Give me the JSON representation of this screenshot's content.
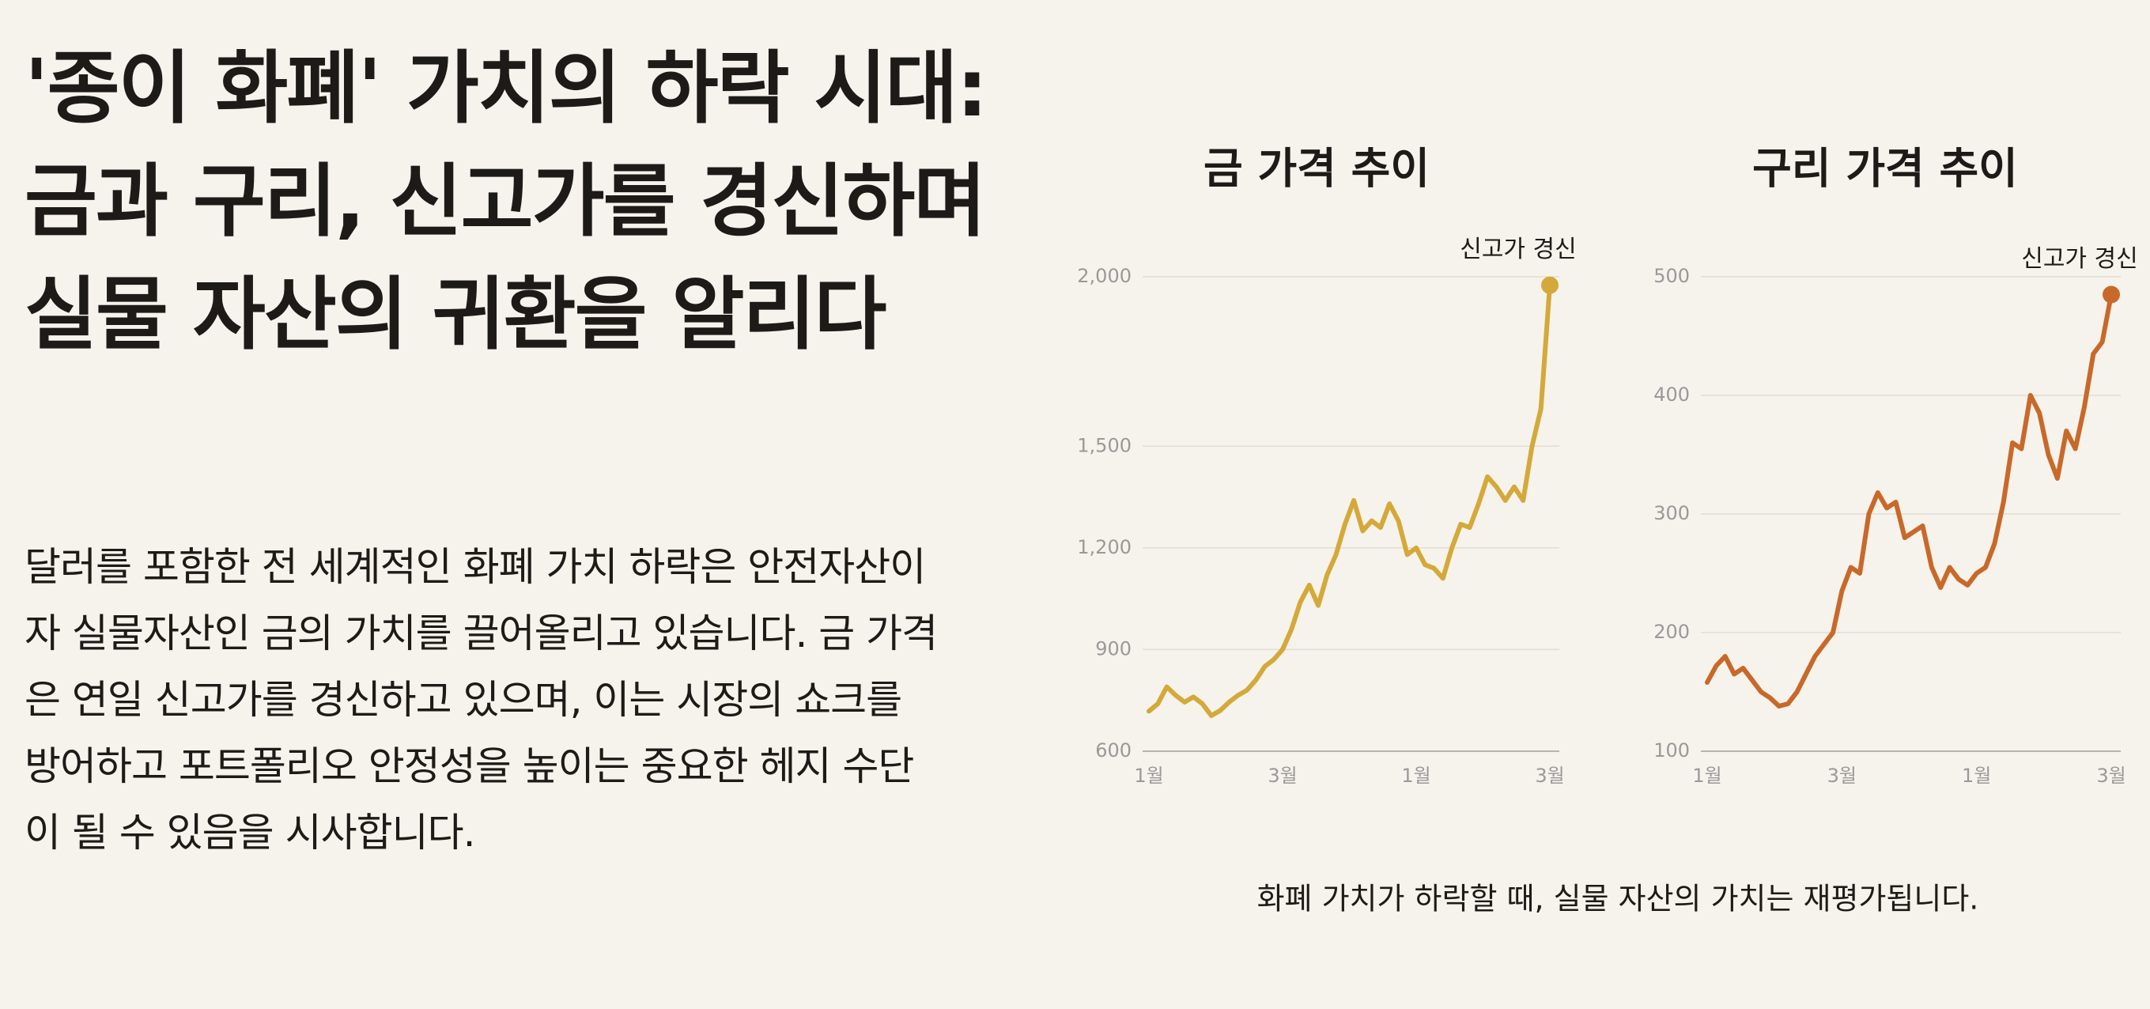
{
  "headline": "'종이 화폐' 가치의 하락 시대: 금과 구리, 신고가를 경신하며 실물 자산의 귀환을 알리다",
  "body": "달러를 포함한 전 세계적인 화폐 가치 하락은 안전자산이자 실물자산인 금의 가치를 끌어올리고 있습니다. 금 가격은 연일 신고가를 경신하고 있으며, 이는 시장의 쇼크를 방어하고 포트폴리오 안정성을 높이는 중요한 헤지 수단이 될 수 있음을 시사합니다.",
  "caption": "화폐 가치가 하락할 때, 실물 자산의 가치는 재평가됩니다.",
  "chart_data": [
    {
      "type": "line",
      "title": "금 가격 추이",
      "annotation": "신고가 경신",
      "color": "#d4a93a",
      "grid": true,
      "categories": [
        "1월",
        null,
        null,
        null,
        null,
        null,
        null,
        null,
        null,
        null,
        null,
        null,
        null,
        null,
        null,
        "3월",
        null,
        null,
        null,
        null,
        null,
        null,
        null,
        null,
        null,
        null,
        null,
        null,
        null,
        null,
        "1월",
        null,
        null,
        null,
        null,
        null,
        null,
        null,
        null,
        null,
        null,
        null,
        null,
        null,
        null,
        "3월"
      ],
      "values": [
        718,
        740,
        790,
        765,
        745,
        760,
        740,
        705,
        720,
        745,
        765,
        780,
        810,
        850,
        870,
        900,
        960,
        1040,
        1090,
        1030,
        1120,
        1180,
        1270,
        1340,
        1250,
        1280,
        1260,
        1330,
        1280,
        1180,
        1200,
        1150,
        1140,
        1110,
        1200,
        1270,
        1260,
        1330,
        1410,
        1380,
        1340,
        1380,
        1340,
        1500,
        1610,
        1975
      ],
      "ylim": [
        600,
        2000
      ],
      "yticks": [
        600,
        900,
        {
          "value": 1200,
          "label": "1,200"
        },
        {
          "value": 1500,
          "label": "1,500"
        },
        {
          "value": 2000,
          "label": "2,000"
        }
      ]
    },
    {
      "type": "line",
      "title": "구리 가격 추이",
      "annotation": "신고가 경신",
      "color": "#c8692a",
      "grid": true,
      "categories": [
        "1월",
        null,
        null,
        null,
        null,
        null,
        null,
        null,
        null,
        null,
        null,
        null,
        null,
        null,
        null,
        "3월",
        null,
        null,
        null,
        null,
        null,
        null,
        null,
        null,
        null,
        null,
        null,
        null,
        null,
        null,
        "1월",
        null,
        null,
        null,
        null,
        null,
        null,
        null,
        null,
        null,
        null,
        null,
        null,
        null,
        null,
        "3월"
      ],
      "values": [
        158,
        172,
        180,
        165,
        170,
        160,
        150,
        145,
        138,
        140,
        150,
        165,
        180,
        190,
        200,
        235,
        255,
        250,
        300,
        318,
        305,
        310,
        280,
        285,
        290,
        255,
        238,
        255,
        245,
        240,
        250,
        255,
        275,
        310,
        360,
        355,
        400,
        385,
        350,
        330,
        370,
        355,
        390,
        435,
        445,
        485
      ],
      "ylim": [
        100,
        500
      ],
      "yticks": [
        100,
        200,
        300,
        400,
        500
      ]
    }
  ]
}
